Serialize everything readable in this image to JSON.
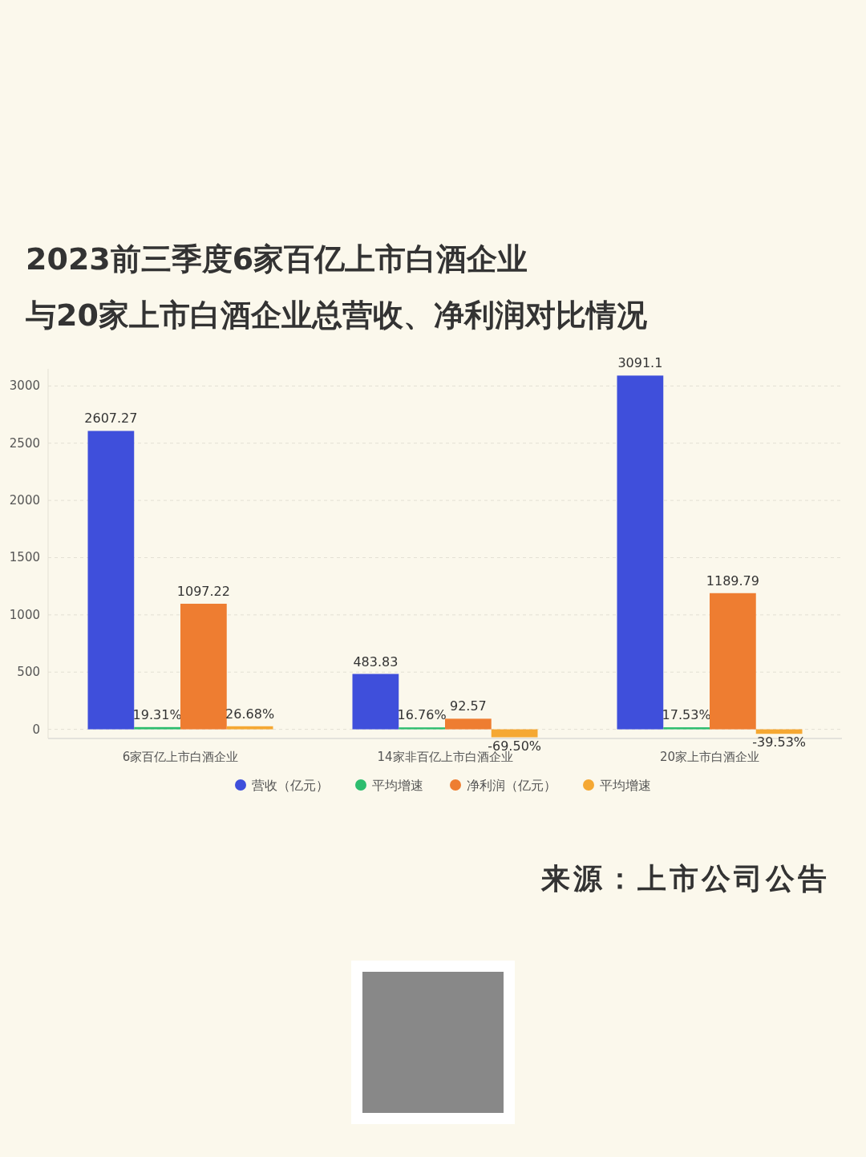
{
  "chart_data": {
    "type": "bar",
    "title": "2023前三季度6家百亿上市白酒企业",
    "subtitle": "与20家上市白酒企业总营收、净利润对比情况",
    "categories": [
      "6家百亿上市白酒企业",
      "14家非百亿上市白酒企业",
      "20家上市白酒企业"
    ],
    "series": [
      {
        "name": "营收（亿元）",
        "color": "#3f4fdb",
        "values": [
          2607.27,
          483.83,
          3091.1
        ],
        "value_labels": [
          "2607.27",
          "483.83",
          "3091.1"
        ]
      },
      {
        "name": "平均增速",
        "color": "#2dbd6e",
        "values": [
          19.31,
          16.76,
          17.53
        ],
        "value_labels": [
          "19.31%",
          "16.76%",
          "17.53%"
        ]
      },
      {
        "name": "净利润（亿元）",
        "color": "#ee7d31",
        "values": [
          1097.22,
          92.57,
          1189.79
        ],
        "value_labels": [
          "1097.22",
          "92.57",
          "1189.79"
        ]
      },
      {
        "name": "平均增速",
        "color": "#f5a833",
        "values": [
          26.68,
          -69.5,
          -39.53
        ],
        "value_labels": [
          "26.68%",
          "-69.50%",
          "-39.53%"
        ]
      }
    ],
    "ylim": [
      -80,
      3150
    ],
    "yticks": [
      0,
      500,
      1000,
      1500,
      2000,
      2500,
      3000
    ],
    "grid": "y",
    "legend": "bottom",
    "marker": "circle",
    "annotations": [
      "来源：上市公司公告"
    ]
  }
}
